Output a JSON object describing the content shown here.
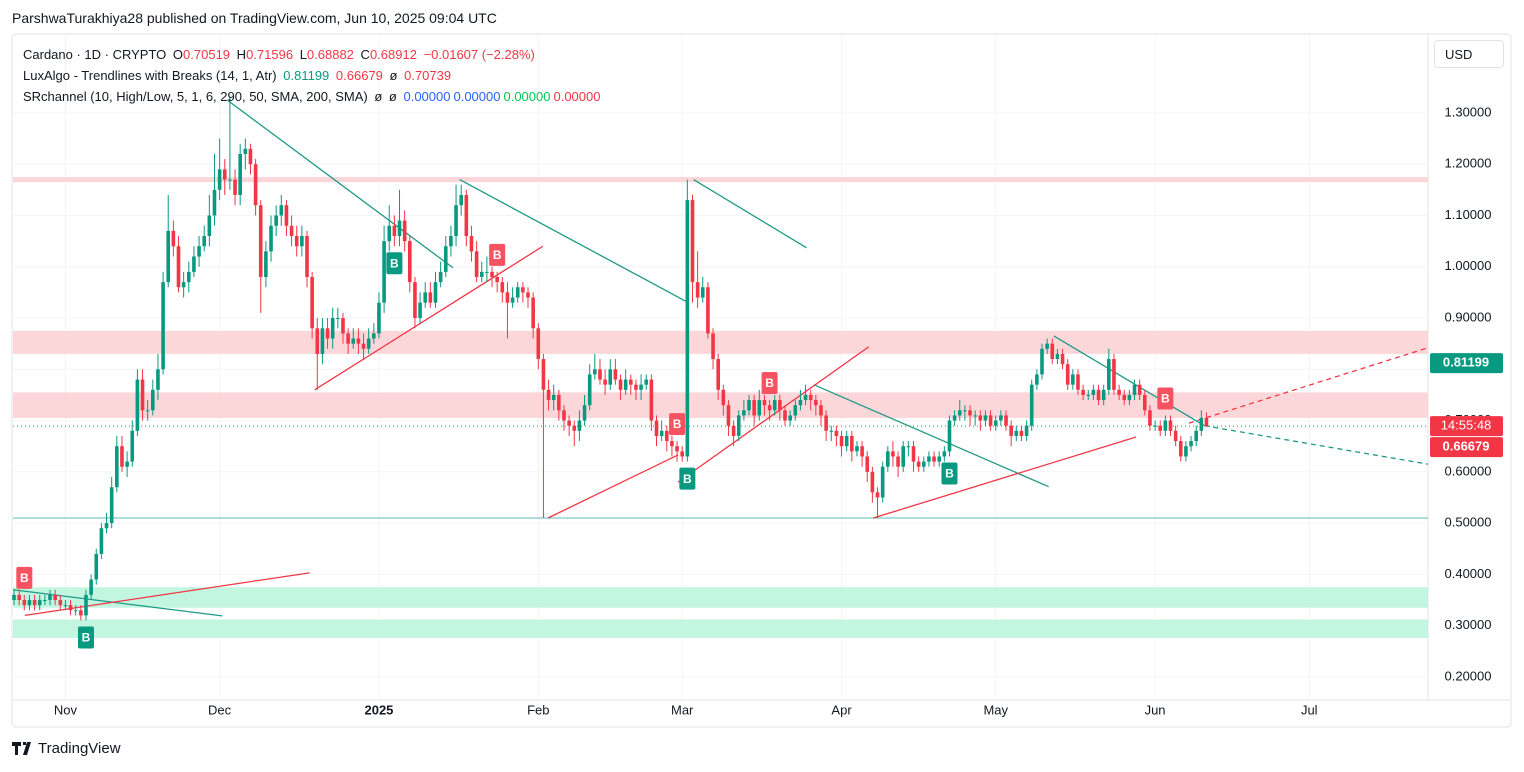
{
  "attribution": "ParshwaTurakhiya28 published on TradingView.com, Jun 10, 2025 09:04 UTC",
  "logo": "TradingView",
  "chart_data": {
    "type": "candlestick",
    "currency": "USD",
    "header": {
      "symbol": "Cardano · 1D · CRYPTO",
      "o_label": "O",
      "h_label": "H",
      "l_label": "L",
      "c_label": "C",
      "change": "−0.01607 (−2.28%)"
    },
    "luxalgo": {
      "name": "LuxAlgo - Trendlines with Breaks (14, 1, Atr)",
      "upper": 0.81199,
      "lower": 0.66679,
      "empty": "ø",
      "value": 0.70739
    },
    "srchannel": {
      "name": "SRchannel (10, High/Low, 5, 1, 6, 290, 50, SMA, 200, SMA)",
      "empty": [
        "ø",
        "ø"
      ],
      "values": [
        0,
        0,
        0,
        0
      ],
      "value_labels": [
        "0.00000",
        "0.00000",
        "0.00000",
        "0.00000"
      ],
      "colors": [
        "#2962ff",
        "#2962ff",
        "#00c853",
        "#f23645"
      ]
    },
    "countdown": "14:55:48",
    "up_color": "#089981",
    "down_color": "#f23645",
    "open": [
      0.35,
      0.36,
      0.35,
      0.34,
      0.35,
      0.34,
      0.35,
      0.35,
      0.36,
      0.35,
      0.34,
      0.34,
      0.33,
      0.33,
      0.32,
      0.36,
      0.39,
      0.44,
      0.49,
      0.5,
      0.57,
      0.65,
      0.61,
      0.62,
      0.68,
      0.78,
      0.72,
      0.72,
      0.76,
      0.8,
      0.97,
      1.07,
      1.04,
      0.96,
      0.97,
      0.99,
      1.02,
      1.04,
      1.06,
      1.1,
      1.15,
      1.19,
      1.17,
      1.17,
      1.14,
      1.22,
      1.23,
      1.2,
      1.12,
      0.98,
      1.03,
      1.08,
      1.1,
      1.12,
      1.08,
      1.06,
      1.04,
      1.06,
      0.98,
      0.88,
      0.83,
      0.88,
      0.86,
      0.9,
      0.9,
      0.87,
      0.85,
      0.86,
      0.85,
      0.84,
      0.86,
      0.87,
      0.93,
      1.05,
      1.08,
      1.06,
      1.09,
      1.05,
      0.97,
      0.9,
      0.93,
      0.95,
      0.93,
      0.97,
      0.99,
      1.04,
      1.06,
      1.12,
      1.14,
      1.06,
      1.03,
      0.98,
      0.99,
      0.99,
      0.98,
      0.97,
      0.95,
      0.93,
      0.94,
      0.96,
      0.95,
      0.94,
      0.88,
      0.82,
      0.76,
      0.74,
      0.75,
      0.72,
      0.7,
      0.69,
      0.68,
      0.7,
      0.73,
      0.79,
      0.8,
      0.78,
      0.77,
      0.8,
      0.78,
      0.76,
      0.78,
      0.77,
      0.76,
      0.77,
      0.78,
      0.7,
      0.67,
      0.68,
      0.66,
      0.65,
      0.64,
      0.63,
      1.13,
      0.97,
      0.94,
      0.96,
      0.87,
      0.82,
      0.76,
      0.73,
      0.69,
      0.67,
      0.71,
      0.72,
      0.74,
      0.71,
      0.74,
      0.73,
      0.72,
      0.74,
      0.72,
      0.7,
      0.71,
      0.73,
      0.74,
      0.75,
      0.74,
      0.73,
      0.71,
      0.68,
      0.68,
      0.67,
      0.65,
      0.67,
      0.64,
      0.65,
      0.63,
      0.6,
      0.56,
      0.55,
      0.61,
      0.64,
      0.63,
      0.61,
      0.65,
      0.65,
      0.62,
      0.61,
      0.62,
      0.63,
      0.62,
      0.63,
      0.64,
      0.7,
      0.71,
      0.72,
      0.72,
      0.71,
      0.71,
      0.7,
      0.71,
      0.69,
      0.7,
      0.71,
      0.69,
      0.67,
      0.68,
      0.67,
      0.69,
      0.77,
      0.79,
      0.84,
      0.85,
      0.82,
      0.83,
      0.81,
      0.77,
      0.79,
      0.76,
      0.75,
      0.75,
      0.76,
      0.74,
      0.76,
      0.82,
      0.76,
      0.75,
      0.74,
      0.75,
      0.77,
      0.75,
      0.72,
      0.69,
      0.69,
      0.68,
      0.7,
      0.68,
      0.66,
      0.63,
      0.65,
      0.66,
      0.68,
      0.70519
    ],
    "high": [
      0.37,
      0.37,
      0.36,
      0.36,
      0.36,
      0.36,
      0.36,
      0.37,
      0.37,
      0.36,
      0.35,
      0.35,
      0.34,
      0.34,
      0.37,
      0.4,
      0.45,
      0.5,
      0.52,
      0.59,
      0.67,
      0.67,
      0.64,
      0.7,
      0.8,
      0.8,
      0.74,
      0.78,
      0.83,
      0.99,
      1.14,
      1.09,
      1.06,
      0.99,
      1.01,
      1.04,
      1.06,
      1.08,
      1.14,
      1.22,
      1.25,
      1.21,
      1.33,
      1.19,
      1.24,
      1.25,
      1.24,
      1.21,
      1.13,
      1.05,
      1.1,
      1.12,
      1.14,
      1.13,
      1.1,
      1.08,
      1.08,
      1.07,
      0.99,
      0.9,
      0.9,
      0.9,
      0.92,
      0.92,
      0.91,
      0.88,
      0.88,
      0.88,
      0.87,
      0.88,
      0.89,
      0.95,
      1.08,
      1.12,
      1.1,
      1.15,
      1.11,
      1.06,
      0.98,
      0.95,
      0.97,
      0.97,
      0.99,
      1.01,
      1.06,
      1.08,
      1.16,
      1.16,
      1.15,
      1.08,
      1.05,
      1.01,
      1.02,
      1.0,
      0.99,
      0.98,
      0.97,
      0.96,
      0.97,
      0.97,
      0.96,
      0.95,
      0.89,
      0.83,
      0.78,
      0.77,
      0.76,
      0.73,
      0.71,
      0.7,
      0.72,
      0.75,
      0.81,
      0.83,
      0.82,
      0.8,
      0.82,
      0.82,
      0.79,
      0.8,
      0.79,
      0.78,
      0.79,
      0.79,
      0.79,
      0.71,
      0.7,
      0.69,
      0.67,
      0.66,
      0.65,
      1.17,
      1.14,
      1.03,
      0.98,
      0.97,
      0.88,
      0.83,
      0.77,
      0.74,
      0.7,
      0.72,
      0.74,
      0.75,
      0.75,
      0.76,
      0.75,
      0.74,
      0.75,
      0.75,
      0.73,
      0.72,
      0.74,
      0.76,
      0.77,
      0.76,
      0.75,
      0.74,
      0.72,
      0.69,
      0.69,
      0.68,
      0.68,
      0.68,
      0.66,
      0.66,
      0.64,
      0.61,
      0.57,
      0.62,
      0.65,
      0.66,
      0.64,
      0.66,
      0.66,
      0.66,
      0.63,
      0.63,
      0.64,
      0.64,
      0.64,
      0.65,
      0.71,
      0.72,
      0.74,
      0.73,
      0.73,
      0.72,
      0.72,
      0.72,
      0.72,
      0.71,
      0.72,
      0.72,
      0.7,
      0.69,
      0.69,
      0.7,
      0.78,
      0.8,
      0.85,
      0.86,
      0.86,
      0.84,
      0.84,
      0.82,
      0.8,
      0.8,
      0.77,
      0.76,
      0.77,
      0.77,
      0.77,
      0.84,
      0.83,
      0.77,
      0.76,
      0.76,
      0.78,
      0.78,
      0.76,
      0.73,
      0.7,
      0.7,
      0.71,
      0.71,
      0.69,
      0.67,
      0.66,
      0.67,
      0.69,
      0.72,
      0.71596
    ],
    "low": [
      0.34,
      0.34,
      0.33,
      0.33,
      0.33,
      0.33,
      0.34,
      0.34,
      0.34,
      0.33,
      0.33,
      0.32,
      0.32,
      0.31,
      0.31,
      0.35,
      0.38,
      0.43,
      0.48,
      0.49,
      0.56,
      0.6,
      0.59,
      0.61,
      0.67,
      0.7,
      0.7,
      0.71,
      0.74,
      0.79,
      0.96,
      1.02,
      0.95,
      0.94,
      0.95,
      0.98,
      1.0,
      1.03,
      1.04,
      1.08,
      1.13,
      1.14,
      1.15,
      1.12,
      1.12,
      1.19,
      1.18,
      1.1,
      0.91,
      0.96,
      1.01,
      1.06,
      1.08,
      1.06,
      1.04,
      1.02,
      1.02,
      0.96,
      0.86,
      0.76,
      0.81,
      0.84,
      0.84,
      0.88,
      0.85,
      0.83,
      0.84,
      0.83,
      0.82,
      0.83,
      0.85,
      0.86,
      0.91,
      1.03,
      1.04,
      1.04,
      1.03,
      0.95,
      0.88,
      0.89,
      0.92,
      0.92,
      0.92,
      0.96,
      0.98,
      1.02,
      1.04,
      1.1,
      1.04,
      1.01,
      0.97,
      0.97,
      0.97,
      0.96,
      0.95,
      0.93,
      0.86,
      0.92,
      0.93,
      0.93,
      0.92,
      0.86,
      0.8,
      0.51,
      0.72,
      0.72,
      0.7,
      0.68,
      0.67,
      0.65,
      0.66,
      0.69,
      0.72,
      0.78,
      0.77,
      0.75,
      0.76,
      0.77,
      0.74,
      0.75,
      0.75,
      0.74,
      0.74,
      0.76,
      0.68,
      0.65,
      0.66,
      0.64,
      0.63,
      0.62,
      0.62,
      0.62,
      0.93,
      0.92,
      0.93,
      0.86,
      0.8,
      0.74,
      0.71,
      0.67,
      0.65,
      0.66,
      0.7,
      0.71,
      0.69,
      0.7,
      0.71,
      0.7,
      0.71,
      0.7,
      0.69,
      0.69,
      0.7,
      0.72,
      0.73,
      0.72,
      0.71,
      0.69,
      0.66,
      0.66,
      0.65,
      0.63,
      0.64,
      0.62,
      0.63,
      0.61,
      0.58,
      0.54,
      0.51,
      0.54,
      0.6,
      0.61,
      0.59,
      0.6,
      0.63,
      0.6,
      0.6,
      0.6,
      0.61,
      0.61,
      0.61,
      0.62,
      0.63,
      0.69,
      0.7,
      0.7,
      0.69,
      0.69,
      0.68,
      0.69,
      0.68,
      0.68,
      0.69,
      0.68,
      0.65,
      0.66,
      0.66,
      0.66,
      0.68,
      0.76,
      0.78,
      0.83,
      0.81,
      0.81,
      0.8,
      0.76,
      0.76,
      0.75,
      0.74,
      0.74,
      0.74,
      0.73,
      0.73,
      0.75,
      0.75,
      0.74,
      0.73,
      0.73,
      0.74,
      0.74,
      0.71,
      0.68,
      0.68,
      0.67,
      0.67,
      0.67,
      0.65,
      0.62,
      0.62,
      0.64,
      0.65,
      0.67,
      0.68882
    ],
    "close": [
      0.36,
      0.35,
      0.34,
      0.35,
      0.34,
      0.35,
      0.35,
      0.36,
      0.35,
      0.34,
      0.34,
      0.33,
      0.33,
      0.32,
      0.36,
      0.39,
      0.44,
      0.49,
      0.5,
      0.57,
      0.65,
      0.61,
      0.62,
      0.68,
      0.78,
      0.72,
      0.72,
      0.76,
      0.8,
      0.97,
      1.07,
      1.04,
      0.96,
      0.97,
      0.99,
      1.02,
      1.04,
      1.06,
      1.1,
      1.15,
      1.19,
      1.17,
      1.17,
      1.14,
      1.22,
      1.23,
      1.2,
      1.12,
      0.98,
      1.03,
      1.08,
      1.1,
      1.12,
      1.08,
      1.06,
      1.04,
      1.06,
      0.98,
      0.88,
      0.83,
      0.88,
      0.86,
      0.9,
      0.9,
      0.87,
      0.85,
      0.86,
      0.85,
      0.84,
      0.86,
      0.87,
      0.93,
      1.05,
      1.08,
      1.06,
      1.09,
      1.05,
      0.97,
      0.9,
      0.93,
      0.95,
      0.93,
      0.97,
      0.99,
      1.04,
      1.06,
      1.12,
      1.14,
      1.06,
      1.03,
      0.98,
      0.99,
      0.99,
      0.98,
      0.97,
      0.95,
      0.93,
      0.94,
      0.96,
      0.95,
      0.94,
      0.88,
      0.82,
      0.76,
      0.74,
      0.75,
      0.72,
      0.7,
      0.69,
      0.68,
      0.7,
      0.73,
      0.79,
      0.8,
      0.78,
      0.77,
      0.8,
      0.78,
      0.76,
      0.78,
      0.77,
      0.76,
      0.77,
      0.78,
      0.7,
      0.67,
      0.68,
      0.66,
      0.65,
      0.64,
      0.63,
      1.13,
      0.97,
      0.94,
      0.96,
      0.87,
      0.82,
      0.76,
      0.73,
      0.69,
      0.67,
      0.71,
      0.72,
      0.74,
      0.71,
      0.74,
      0.73,
      0.72,
      0.74,
      0.72,
      0.7,
      0.71,
      0.73,
      0.74,
      0.75,
      0.74,
      0.73,
      0.71,
      0.68,
      0.68,
      0.67,
      0.65,
      0.67,
      0.64,
      0.65,
      0.63,
      0.6,
      0.56,
      0.55,
      0.61,
      0.64,
      0.63,
      0.61,
      0.65,
      0.65,
      0.62,
      0.61,
      0.62,
      0.63,
      0.62,
      0.63,
      0.64,
      0.7,
      0.71,
      0.72,
      0.72,
      0.71,
      0.71,
      0.7,
      0.71,
      0.69,
      0.7,
      0.71,
      0.69,
      0.67,
      0.68,
      0.67,
      0.69,
      0.77,
      0.79,
      0.84,
      0.85,
      0.82,
      0.83,
      0.81,
      0.77,
      0.79,
      0.76,
      0.75,
      0.75,
      0.76,
      0.74,
      0.76,
      0.82,
      0.76,
      0.75,
      0.74,
      0.75,
      0.77,
      0.75,
      0.72,
      0.69,
      0.69,
      0.68,
      0.7,
      0.68,
      0.66,
      0.63,
      0.65,
      0.66,
      0.68,
      0.70519,
      0.68912
    ],
    "xlim": [
      -0.2,
      275.1
    ],
    "xticks": [
      {
        "value": 10,
        "label": "Nov"
      },
      {
        "value": 40,
        "label": "Dec"
      },
      {
        "value": 71,
        "label": "2025"
      },
      {
        "value": 102,
        "label": "Feb"
      },
      {
        "value": 130,
        "label": "Mar"
      },
      {
        "value": 161,
        "label": "Apr"
      },
      {
        "value": 191,
        "label": "May"
      },
      {
        "value": 222,
        "label": "Jun"
      },
      {
        "value": 252,
        "label": "Jul"
      }
    ],
    "ylim": [
      0.155,
      1.452
    ],
    "yticks": [
      {
        "value": 0.2,
        "label": "0.20000"
      },
      {
        "value": 0.3,
        "label": "0.30000"
      },
      {
        "value": 0.4,
        "label": "0.40000"
      },
      {
        "value": 0.5,
        "label": "0.50000"
      },
      {
        "value": 0.6,
        "label": "0.60000"
      },
      {
        "value": 0.7,
        "label": "0.70000"
      },
      {
        "value": 0.8,
        "label": "0.80000"
      },
      {
        "value": 0.9,
        "label": "0.90000"
      },
      {
        "value": 1.0,
        "label": "1.00000"
      },
      {
        "value": 1.1,
        "label": "1.10000"
      },
      {
        "value": 1.2,
        "label": "1.20000"
      },
      {
        "value": 1.3,
        "label": "1.30000"
      }
    ],
    "grid": true,
    "zones": [
      {
        "low": 1.165,
        "high": 1.175,
        "color": "#fbd0d3"
      },
      {
        "low": 0.83,
        "high": 0.875,
        "color": "#fbd0d3"
      },
      {
        "low": 0.705,
        "high": 0.755,
        "color": "#fbd0d3"
      },
      {
        "low": 0.335,
        "high": 0.375,
        "color": "#b9f5dc"
      },
      {
        "low": 0.276,
        "high": 0.312,
        "color": "#b9f5dc"
      }
    ],
    "levels": [
      {
        "value": 0.51,
        "color": "#5fb8b8"
      }
    ],
    "trendlines": [
      {
        "from": [
          41.5,
          1.325
        ],
        "to": [
          85.4,
          0.998
        ],
        "color": "#1e9a86",
        "dashed": false
      },
      {
        "from": [
          86.7,
          1.17
        ],
        "to": [
          131.2,
          0.93
        ],
        "color": "#1e9a86",
        "dashed": false
      },
      {
        "from": [
          132.2,
          1.17
        ],
        "to": [
          154.2,
          1.037
        ],
        "color": "#1e9a86",
        "dashed": false
      },
      {
        "from": [
          155.6,
          0.77
        ],
        "to": [
          201.3,
          0.571
        ],
        "color": "#1e9a86",
        "dashed": false
      },
      {
        "from": [
          202.3,
          0.865
        ],
        "to": [
          231.6,
          0.69
        ],
        "color": "#1e9a86",
        "dashed": false
      },
      {
        "from": [
          231.6,
          0.69
        ],
        "to": [
          275.1,
          0.615
        ],
        "color": "#1e9a86",
        "dashed": true
      },
      {
        "from": [
          -0.2,
          0.37
        ],
        "to": [
          40.5,
          0.319
        ],
        "color": "#1e9a86",
        "dashed": false
      },
      {
        "from": [
          58.5,
          0.76
        ],
        "to": [
          102.9,
          1.04
        ],
        "color": "#f23645",
        "dashed": false
      },
      {
        "from": [
          103.9,
          0.51
        ],
        "to": [
          129.2,
          0.633
        ],
        "color": "#f23645",
        "dashed": false
      },
      {
        "from": [
          129.2,
          0.58
        ],
        "to": [
          166.3,
          0.844
        ],
        "color": "#f23645",
        "dashed": false
      },
      {
        "from": [
          167.2,
          0.51
        ],
        "to": [
          218.3,
          0.668
        ],
        "color": "#f23645",
        "dashed": false
      },
      {
        "from": [
          228.6,
          0.695
        ],
        "to": [
          275.1,
          0.842
        ],
        "color": "#f23645",
        "dashed": true
      },
      {
        "from": [
          2.1,
          0.32
        ],
        "to": [
          57.5,
          0.403
        ],
        "color": "#f23645",
        "dashed": false
      }
    ],
    "breaks": [
      {
        "label": "B",
        "index": 2,
        "kind": "bear"
      },
      {
        "label": "B",
        "index": 94,
        "kind": "bear"
      },
      {
        "label": "B",
        "index": 129,
        "kind": "bear"
      },
      {
        "label": "B",
        "index": 147,
        "kind": "bear"
      },
      {
        "label": "B",
        "index": 224,
        "kind": "bear"
      },
      {
        "label": "B",
        "index": 14,
        "kind": "bull"
      },
      {
        "label": "B",
        "index": 74,
        "kind": "bull"
      },
      {
        "label": "B",
        "index": 131,
        "kind": "bull"
      },
      {
        "label": "B",
        "index": 182,
        "kind": "bull"
      }
    ]
  }
}
